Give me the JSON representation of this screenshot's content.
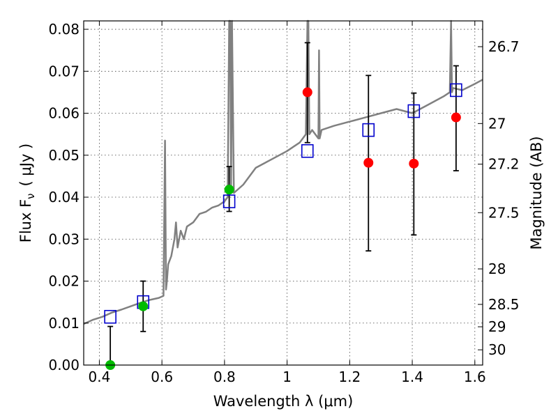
{
  "chart_data": {
    "type": "scatter",
    "xlabel": "Wavelength  λ (μm)",
    "ylabel": "Flux  F",
    "ylabel_sub": "ν",
    "ylabel_unit": "( μJy )",
    "ylabel_right": "Magnitude (AB)",
    "xlim": [
      0.35,
      1.625
    ],
    "ylim": [
      0.0,
      0.082
    ],
    "grid": true,
    "x_ticks": [
      0.4,
      0.6,
      0.8,
      1.0,
      1.2,
      1.4,
      1.6
    ],
    "x_tick_labels": [
      "0.4",
      "0.6",
      "0.8",
      "1",
      "1.2",
      "1.4",
      "1.6"
    ],
    "y_ticks": [
      0.0,
      0.01,
      0.02,
      0.03,
      0.04,
      0.05,
      0.06,
      0.07,
      0.08
    ],
    "y_tick_labels": [
      "0.00",
      "0.01",
      "0.02",
      "0.03",
      "0.04",
      "0.05",
      "0.06",
      "0.07",
      "0.08"
    ],
    "mag_ticks": [
      26.7,
      27,
      27.2,
      27.5,
      28,
      28.5,
      29,
      30
    ],
    "mag_tick_labels": [
      "26.7",
      "27",
      "27.2",
      "27.5",
      "28",
      "28.5",
      "29",
      "30"
    ],
    "colors": {
      "model": "#808080",
      "detection": "#00bb00",
      "photometry": "#ff0000",
      "synthetic": "#0000cc",
      "errorbar": "#000000"
    },
    "series": [
      {
        "name": "model_sed",
        "type": "line",
        "x": [
          0.35,
          0.38,
          0.41,
          0.44,
          0.47,
          0.5,
          0.53,
          0.56,
          0.59,
          0.605,
          0.61,
          0.613,
          0.616,
          0.62,
          0.63,
          0.64,
          0.645,
          0.65,
          0.66,
          0.67,
          0.68,
          0.7,
          0.72,
          0.74,
          0.76,
          0.78,
          0.8,
          0.81,
          0.815,
          0.818,
          0.821,
          0.824,
          0.83,
          0.86,
          0.9,
          0.95,
          1.0,
          1.02,
          1.04,
          1.06,
          1.065,
          1.068,
          1.071,
          1.08,
          1.1,
          1.102,
          1.104,
          1.11,
          1.15,
          1.2,
          1.25,
          1.3,
          1.35,
          1.4,
          1.45,
          1.5,
          1.52,
          1.524,
          1.527,
          1.53,
          1.56,
          1.6,
          1.625
        ],
        "y": [
          0.0098,
          0.0108,
          0.0115,
          0.0125,
          0.0132,
          0.014,
          0.0148,
          0.0155,
          0.016,
          0.0165,
          0.0535,
          0.018,
          0.02,
          0.024,
          0.026,
          0.03,
          0.034,
          0.028,
          0.032,
          0.03,
          0.033,
          0.034,
          0.036,
          0.0365,
          0.0375,
          0.038,
          0.039,
          0.04,
          0.082,
          0.082,
          0.042,
          0.082,
          0.041,
          0.043,
          0.047,
          0.049,
          0.051,
          0.052,
          0.053,
          0.055,
          0.082,
          0.082,
          0.055,
          0.056,
          0.054,
          0.075,
          0.054,
          0.056,
          0.057,
          0.058,
          0.059,
          0.06,
          0.061,
          0.06,
          0.062,
          0.064,
          0.065,
          0.082,
          0.065,
          0.066,
          0.0655,
          0.067,
          0.068
        ]
      },
      {
        "name": "synthetic_photometry",
        "marker": "open-square",
        "x": [
          0.435,
          0.54,
          0.815,
          1.065,
          1.26,
          1.405,
          1.54
        ],
        "y": [
          0.0115,
          0.015,
          0.039,
          0.051,
          0.056,
          0.0605,
          0.0655
        ]
      },
      {
        "name": "observed_flux",
        "marker": "circle",
        "x": [
          0.435,
          0.54,
          0.815,
          1.065,
          1.26,
          1.405,
          1.54
        ],
        "y": [
          0.0,
          0.014,
          0.0418,
          0.065,
          0.0482,
          0.048,
          0.059
        ],
        "yerr_low": [
          0.0,
          0.006,
          0.0052,
          0.012,
          0.021,
          0.017,
          0.0127
        ],
        "yerr_high": [
          0.0092,
          0.006,
          0.0055,
          0.0118,
          0.0208,
          0.0168,
          0.0123
        ],
        "point_colors": [
          "#00bb00",
          "#00bb00",
          "#00bb00",
          "#ff0000",
          "#ff0000",
          "#ff0000",
          "#ff0000"
        ]
      }
    ]
  }
}
